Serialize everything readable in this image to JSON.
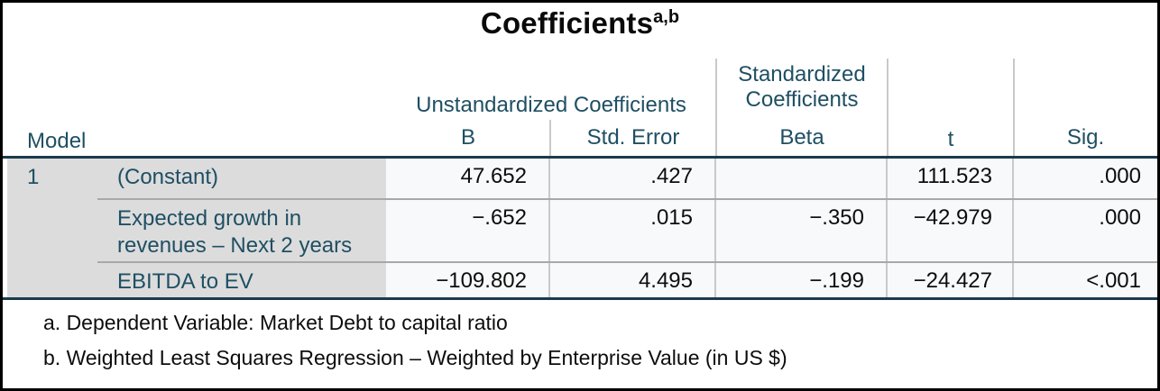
{
  "title": {
    "text": "Coefficients",
    "superscript": "a,b"
  },
  "table": {
    "model_header": "Model",
    "group_headers": {
      "unstandardized": "Unstandardized Coefficients",
      "standardized": "Standardized Coefficients"
    },
    "columns": [
      "B",
      "Std. Error",
      "Beta",
      "t",
      "Sig."
    ],
    "model_number": "1",
    "rows": [
      {
        "label": "(Constant)",
        "b": "47.652",
        "std_error": ".427",
        "beta": "",
        "t": "111.523",
        "sig": ".000"
      },
      {
        "label": "Expected growth in revenues – Next 2 years",
        "b": "−.652",
        "std_error": ".015",
        "beta": "−.350",
        "t": "−42.979",
        "sig": ".000"
      },
      {
        "label": "EBITDA to EV",
        "b": "−109.802",
        "std_error": "4.495",
        "beta": "−.199",
        "t": "−24.427",
        "sig": "<.001"
      }
    ]
  },
  "footnotes": [
    "a. Dependent Variable: Market Debt to capital ratio",
    "b. Weighted Least Squares Regression – Weighted by Enterprise Value (in US $)"
  ],
  "colors": {
    "header_text": "#1f4f63",
    "dark_rule": "#1c3a4d",
    "label_background": "#dcdcdc",
    "data_background": "#f8f9fa",
    "row_separator": "#a8a8a8",
    "column_divider": "#c9c9c9",
    "outer_border": "#000000"
  }
}
